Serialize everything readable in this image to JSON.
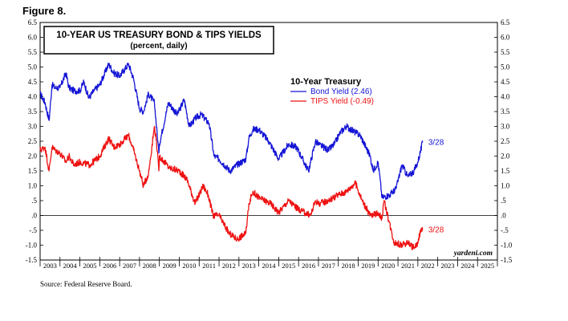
{
  "figure_label": "Figure 8.",
  "source": "Source: Federal Reserve Board.",
  "chart_data": {
    "type": "line",
    "title": "10-YEAR US TREASURY BOND & TIPS YIELDS",
    "subtitle": "(percent, daily)",
    "legend_title": "10-Year Treasury",
    "legend_position": "top-center",
    "credit": "yardeni.com",
    "ylim": [
      -1.5,
      6.5
    ],
    "xlim": [
      2003,
      2026
    ],
    "y_ticks": [
      "6.5",
      "6.0",
      "5.5",
      "5.0",
      "4.5",
      "4.0",
      "3.5",
      "3.0",
      "2.5",
      "2.0",
      "1.5",
      "1.0",
      ".5",
      ".0",
      "-.5",
      "-1.0",
      "-1.5"
    ],
    "x_ticks": [
      "2003",
      "2004",
      "2005",
      "2006",
      "2007",
      "2008",
      "2009",
      "2010",
      "2011",
      "2012",
      "2013",
      "2014",
      "2015",
      "2016",
      "2017",
      "2018",
      "2019",
      "2020",
      "2021",
      "2022",
      "2023",
      "2024",
      "2025"
    ],
    "zero_line": true,
    "series": [
      {
        "name": "Bond Yield (2.46)",
        "color": "#1515d6",
        "end_label": "3/28",
        "x": [
          2003.0,
          2003.25,
          2003.45,
          2003.6,
          2003.75,
          2004.0,
          2004.3,
          2004.45,
          2004.7,
          2005.0,
          2005.2,
          2005.45,
          2005.7,
          2006.0,
          2006.45,
          2006.7,
          2007.0,
          2007.45,
          2007.7,
          2008.0,
          2008.2,
          2008.45,
          2008.75,
          2008.97,
          2009.0,
          2009.45,
          2009.9,
          2010.25,
          2010.5,
          2010.85,
          2011.1,
          2011.5,
          2011.75,
          2012.0,
          2012.55,
          2012.9,
          2013.35,
          2013.5,
          2013.7,
          2014.0,
          2014.5,
          2015.0,
          2015.5,
          2015.9,
          2016.5,
          2016.85,
          2017.0,
          2017.5,
          2017.8,
          2018.1,
          2018.4,
          2018.85,
          2019.1,
          2019.6,
          2019.75,
          2020.0,
          2020.2,
          2020.6,
          2020.9,
          2021.2,
          2021.5,
          2021.8,
          2022.0,
          2022.24
        ],
        "values": [
          4.1,
          3.8,
          3.2,
          4.4,
          4.3,
          4.3,
          4.8,
          4.3,
          4.2,
          4.2,
          4.5,
          3.95,
          4.2,
          4.4,
          5.1,
          4.8,
          4.7,
          5.1,
          4.6,
          3.6,
          3.5,
          4.1,
          3.8,
          2.1,
          2.4,
          3.8,
          3.4,
          3.9,
          3.0,
          3.3,
          3.4,
          3.1,
          2.0,
          1.9,
          1.5,
          1.7,
          1.9,
          2.6,
          2.9,
          2.9,
          2.5,
          1.9,
          2.4,
          2.3,
          1.5,
          2.5,
          2.4,
          2.2,
          2.4,
          2.8,
          3.0,
          2.8,
          2.7,
          2.0,
          1.5,
          1.8,
          0.6,
          0.7,
          0.9,
          1.7,
          1.3,
          1.5,
          1.8,
          2.46
        ]
      },
      {
        "name": "TIPS Yield (-0.49)",
        "color": "#ee1111",
        "end_label": "3/28",
        "x": [
          2003.0,
          2003.25,
          2003.45,
          2003.6,
          2003.75,
          2004.0,
          2004.3,
          2004.45,
          2004.7,
          2005.0,
          2005.5,
          2006.0,
          2006.45,
          2006.7,
          2007.0,
          2007.45,
          2007.7,
          2008.0,
          2008.2,
          2008.45,
          2008.75,
          2008.85,
          2008.97,
          2009.0,
          2009.5,
          2010.0,
          2010.4,
          2010.8,
          2011.2,
          2011.45,
          2011.7,
          2012.0,
          2012.5,
          2012.9,
          2013.35,
          2013.5,
          2013.7,
          2014.0,
          2014.6,
          2015.0,
          2015.5,
          2016.0,
          2016.6,
          2016.85,
          2017.0,
          2017.5,
          2018.0,
          2018.4,
          2018.85,
          2019.2,
          2019.6,
          2019.75,
          2020.0,
          2020.2,
          2020.3,
          2020.8,
          2021.2,
          2021.5,
          2021.8,
          2022.0,
          2022.12,
          2022.24
        ],
        "values": [
          2.2,
          2.3,
          1.5,
          2.3,
          2.2,
          2.1,
          1.8,
          2.0,
          1.7,
          1.8,
          1.7,
          2.0,
          2.6,
          2.3,
          2.4,
          2.7,
          2.2,
          1.5,
          1.0,
          1.4,
          3.0,
          2.5,
          1.5,
          2.0,
          1.6,
          1.5,
          1.2,
          0.4,
          1.0,
          0.7,
          0.0,
          0.0,
          -0.6,
          -0.8,
          -0.6,
          0.4,
          0.8,
          0.6,
          0.4,
          0.1,
          0.5,
          0.2,
          0.0,
          0.5,
          0.4,
          0.5,
          0.7,
          0.8,
          1.1,
          0.5,
          0.0,
          0.0,
          0.1,
          -0.1,
          0.5,
          -0.9,
          -1.0,
          -0.9,
          -1.1,
          -0.95,
          -0.5,
          -0.49
        ]
      }
    ]
  }
}
